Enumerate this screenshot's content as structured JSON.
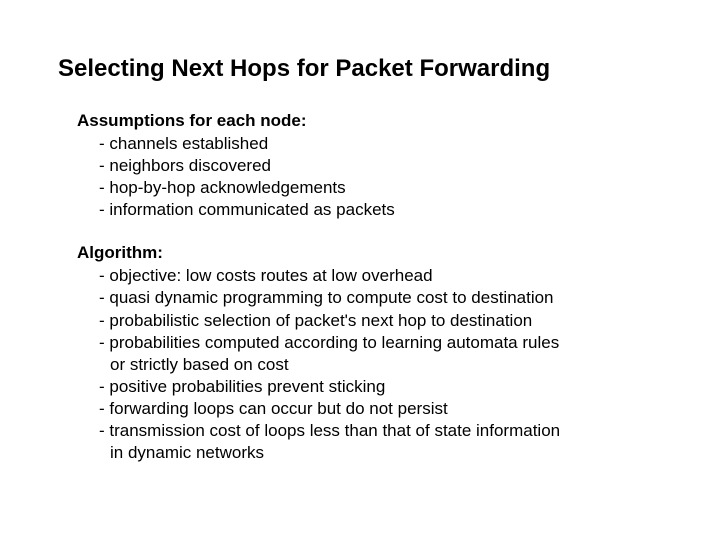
{
  "title": "Selecting Next Hops for Packet Forwarding",
  "sections": [
    {
      "heading": "Assumptions for each node:",
      "items": [
        {
          "text": "channels established"
        },
        {
          "text": "neighbors discovered"
        },
        {
          "text": "hop-by-hop acknowledgements"
        },
        {
          "text": "information communicated as packets"
        }
      ]
    },
    {
      "heading": "Algorithm:",
      "items": [
        {
          "text": "objective: low costs routes at low overhead"
        },
        {
          "text": "quasi dynamic programming to compute cost to destination"
        },
        {
          "text": "probabilistic selection of packet's next hop to destination"
        },
        {
          "text": "probabilities computed according to learning automata rules",
          "cont": "or strictly based on cost"
        },
        {
          "text": "positive probabilities prevent sticking"
        },
        {
          "text": "forwarding loops can occur but do not persist"
        },
        {
          "text": "transmission cost of loops less than that of state information",
          "cont": "in dynamic networks"
        }
      ]
    }
  ],
  "style": {
    "background_color": "#ffffff",
    "text_color": "#000000",
    "title_fontsize": 24,
    "heading_fontsize": 17,
    "body_fontsize": 17,
    "font_family": "Arial"
  }
}
